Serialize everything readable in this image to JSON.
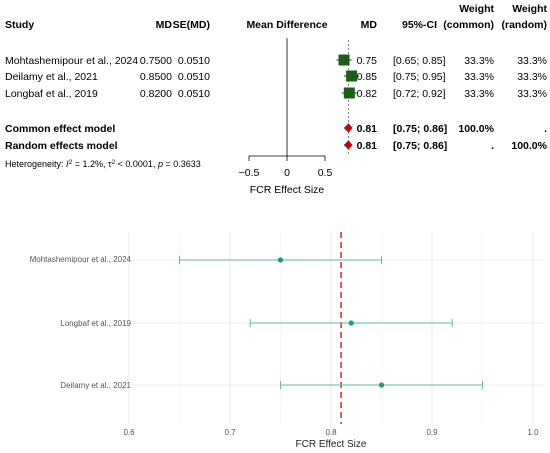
{
  "chart_data": [
    {
      "type": "forest",
      "headers": {
        "study": "Study",
        "md": "MD",
        "se": "SE(MD)",
        "plot": "Mean Difference",
        "md2": "MD",
        "ci": "95%-CI",
        "weight": "Weight",
        "common": "(common)",
        "random": "(random)"
      },
      "studies": [
        {
          "name": "Mohtashemipour et al., 2024",
          "md": "0.7500",
          "se": "0.0510",
          "md2": "0.75",
          "ci": "[0.65; 0.85]",
          "w_common": "33.3%",
          "w_random": "33.3%",
          "est": 0.75
        },
        {
          "name": "Deilamy et al., 2021",
          "md": "0.8500",
          "se": "0.0510",
          "md2": "0.85",
          "ci": "[0.75; 0.95]",
          "w_common": "33.3%",
          "w_random": "33.3%",
          "est": 0.85
        },
        {
          "name": "Longbaf et al., 2019",
          "md": "0.8200",
          "se": "0.0510",
          "md2": "0.82",
          "ci": "[0.72; 0.92]",
          "w_common": "33.3%",
          "w_random": "33.3%",
          "est": 0.82
        }
      ],
      "models": [
        {
          "name": "Common effect model",
          "md2": "0.81",
          "ci": "[0.75; 0.86]",
          "w_common": "100.0%",
          "w_random": ".",
          "est": 0.81
        },
        {
          "name": "Random effects model",
          "md2": "0.81",
          "ci": "[0.75; 0.86]",
          "w_common": ".",
          "w_random": "100.0%",
          "est": 0.81
        }
      ],
      "heterogeneity": {
        "prefix": "Heterogeneity: ",
        "i2_label": "I",
        "i2_value": " = 1.2%, ",
        "tau_label": "τ",
        "tau_value": " < 0.0001, ",
        "p_label": "p",
        "p_value": " = 0.3633"
      },
      "xticks": [
        "−0.5",
        "0",
        "0.5"
      ],
      "xlabel": "FCR Effect Size",
      "colors": {
        "box": "#1a5e1a",
        "diamond": "#cc0000"
      }
    },
    {
      "type": "scatter",
      "categories": [
        "Mohtashemipour et al., 2024",
        "Longbaf et al., 2019",
        "Deilamy et al., 2021"
      ],
      "estimates": [
        0.75,
        0.82,
        0.85
      ],
      "ci_lower": [
        0.65,
        0.72,
        0.75
      ],
      "ci_upper": [
        0.85,
        0.92,
        0.95
      ],
      "pooled": 0.81,
      "xlim": [
        0.6,
        1.0
      ],
      "xticks": [
        "0.6",
        "0.7",
        "0.8",
        "0.9",
        "1.0"
      ],
      "xlabel": "FCR Effect Size",
      "grid": true,
      "colors": {
        "point": "#1a9e77",
        "line": "#5fb8a3",
        "pooled": "#e03030"
      }
    }
  ]
}
